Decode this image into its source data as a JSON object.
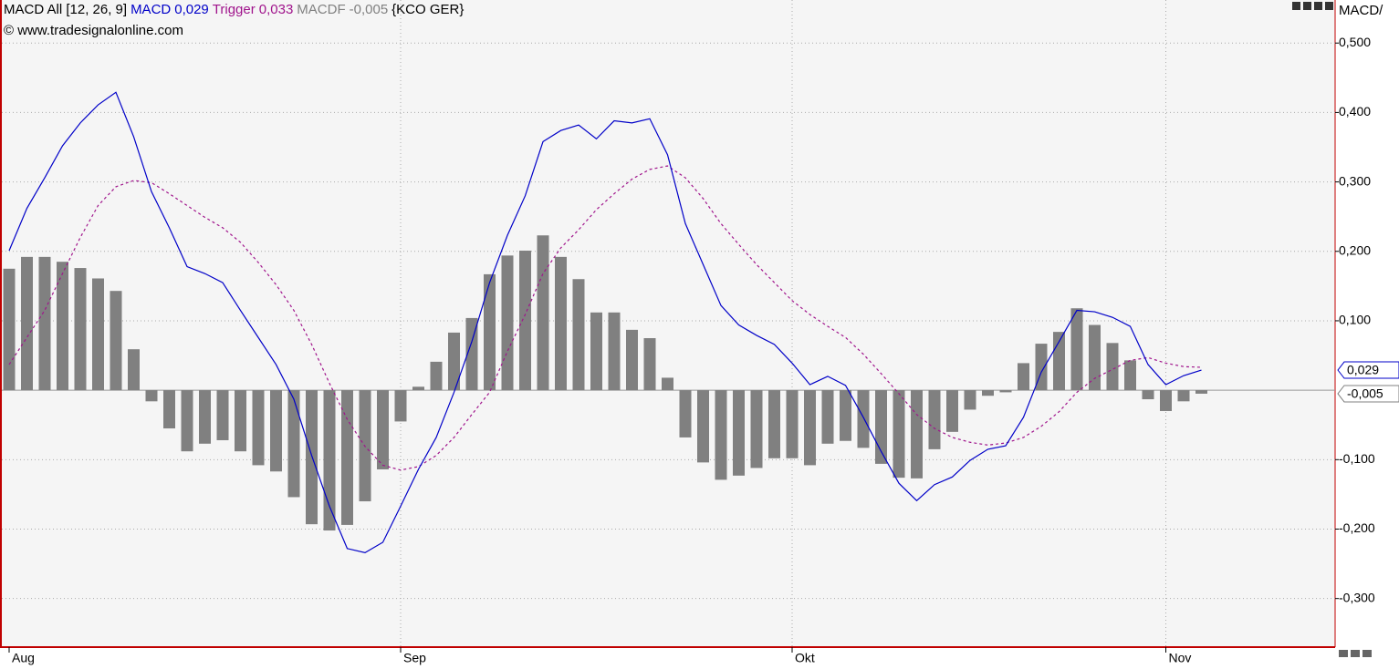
{
  "title": "MACD All [12, 26, 9]",
  "symbol": "{KCO GER}",
  "copyright": "© www.tradesignalonline.com",
  "axis_header": "MACD/",
  "chart_data": {
    "type": "macd",
    "categories": [
      "Aug",
      null,
      null,
      null,
      null,
      null,
      null,
      null,
      null,
      null,
      null,
      null,
      null,
      null,
      null,
      null,
      null,
      null,
      null,
      null,
      null,
      null,
      "Sep",
      null,
      null,
      null,
      null,
      null,
      null,
      null,
      null,
      null,
      null,
      null,
      null,
      null,
      null,
      null,
      null,
      null,
      null,
      null,
      null,
      null,
      "Okt",
      null,
      null,
      null,
      null,
      null,
      null,
      null,
      null,
      null,
      null,
      null,
      null,
      null,
      null,
      null,
      null,
      null,
      null,
      null,
      null,
      "Nov",
      null,
      null
    ],
    "ylim": [
      -0.37,
      0.562
    ],
    "yticks": [
      {
        "value": 0.5,
        "label": "0,500"
      },
      {
        "value": 0.4,
        "label": "0,400"
      },
      {
        "value": 0.3,
        "label": "0,300"
      },
      {
        "value": 0.2,
        "label": "0,200"
      },
      {
        "value": 0.1,
        "label": "0,100"
      },
      {
        "value": -0.1,
        "label": "-0,100"
      },
      {
        "value": -0.2,
        "label": "-0,200"
      },
      {
        "value": -0.3,
        "label": "-0,300"
      }
    ],
    "grid": true,
    "series": [
      {
        "name": "MACD",
        "legend_value": "0,029",
        "style": "line",
        "color": "#0000c8",
        "values": [
          0.201,
          0.262,
          0.306,
          0.352,
          0.385,
          0.411,
          0.429,
          0.365,
          0.286,
          0.234,
          0.178,
          0.168,
          0.155,
          0.115,
          0.076,
          0.037,
          -0.013,
          -0.094,
          -0.167,
          -0.228,
          -0.234,
          -0.219,
          -0.167,
          -0.114,
          -0.068,
          -0.003,
          0.07,
          0.155,
          0.223,
          0.28,
          0.358,
          0.374,
          0.382,
          0.362,
          0.388,
          0.385,
          0.391,
          0.339,
          0.24,
          0.181,
          0.122,
          0.094,
          0.079,
          0.066,
          0.039,
          0.008,
          0.02,
          0.007,
          -0.039,
          -0.088,
          -0.134,
          -0.159,
          -0.136,
          -0.125,
          -0.101,
          -0.085,
          -0.08,
          -0.039,
          0.026,
          0.07,
          0.115,
          0.113,
          0.105,
          0.092,
          0.037,
          0.008,
          0.021,
          0.029
        ]
      },
      {
        "name": "Trigger",
        "legend_value": "0,033",
        "style": "dashed",
        "color": "#a0148c",
        "values": [
          0.037,
          0.076,
          0.115,
          0.168,
          0.22,
          0.266,
          0.293,
          0.302,
          0.299,
          0.283,
          0.266,
          0.249,
          0.234,
          0.213,
          0.184,
          0.152,
          0.115,
          0.066,
          0.01,
          -0.042,
          -0.081,
          -0.108,
          -0.115,
          -0.11,
          -0.094,
          -0.068,
          -0.035,
          -0.003,
          0.056,
          0.109,
          0.168,
          0.205,
          0.231,
          0.26,
          0.283,
          0.304,
          0.318,
          0.323,
          0.306,
          0.276,
          0.24,
          0.21,
          0.181,
          0.155,
          0.129,
          0.109,
          0.092,
          0.076,
          0.052,
          0.024,
          -0.005,
          -0.035,
          -0.055,
          -0.068,
          -0.075,
          -0.079,
          -0.076,
          -0.068,
          -0.052,
          -0.031,
          -0.003,
          0.017,
          0.03,
          0.043,
          0.047,
          0.039,
          0.034,
          0.033
        ]
      },
      {
        "name": "MACDF",
        "legend_value": "-0,005",
        "style": "bar",
        "color": "#808080",
        "values": [
          0.175,
          0.192,
          0.192,
          0.185,
          0.176,
          0.161,
          0.143,
          0.059,
          -0.016,
          -0.055,
          -0.088,
          -0.077,
          -0.072,
          -0.088,
          -0.108,
          -0.117,
          -0.154,
          -0.193,
          -0.202,
          -0.194,
          -0.16,
          -0.114,
          -0.045,
          0.005,
          0.041,
          0.083,
          0.104,
          0.167,
          0.194,
          0.201,
          0.223,
          0.192,
          0.16,
          0.112,
          0.112,
          0.087,
          0.075,
          0.018,
          -0.068,
          -0.104,
          -0.129,
          -0.123,
          -0.112,
          -0.098,
          -0.098,
          -0.108,
          -0.077,
          -0.073,
          -0.083,
          -0.106,
          -0.126,
          -0.127,
          -0.085,
          -0.06,
          -0.028,
          -0.008,
          -0.003,
          0.039,
          0.067,
          0.084,
          0.118,
          0.094,
          0.068,
          0.043,
          -0.013,
          -0.03,
          -0.016,
          -0.005
        ]
      }
    ]
  }
}
